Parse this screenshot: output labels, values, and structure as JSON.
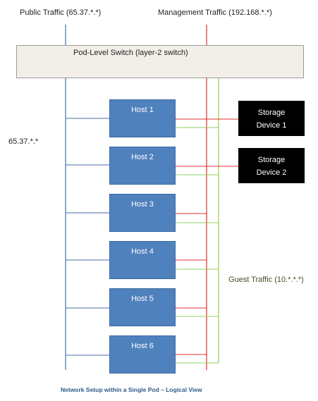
{
  "labels": {
    "public_traffic": "Public Traffic (65.37.*.*)",
    "management_traffic": "Management Traffic (192.168.*.*)",
    "public_subnet": "65.37.*.*",
    "guest_traffic": "Guest Traffic (10.*.*.*)"
  },
  "switch": {
    "label": "Pod-Level Switch (layer-2 switch)"
  },
  "hosts": [
    "Host 1",
    "Host 2",
    "Host 3",
    "Host 4",
    "Host 5",
    "Host 6"
  ],
  "storage": [
    {
      "line1": "Storage",
      "line2": "Device 1"
    },
    {
      "line1": "Storage",
      "line2": "Device 2"
    }
  ],
  "caption": "Network Setup within a Single Pod – Logical View",
  "colors": {
    "public": "#4a6fa5",
    "management": "#e03030",
    "guest": "#8fcf5f",
    "host": "#4f81bd",
    "storage": "#000000"
  }
}
